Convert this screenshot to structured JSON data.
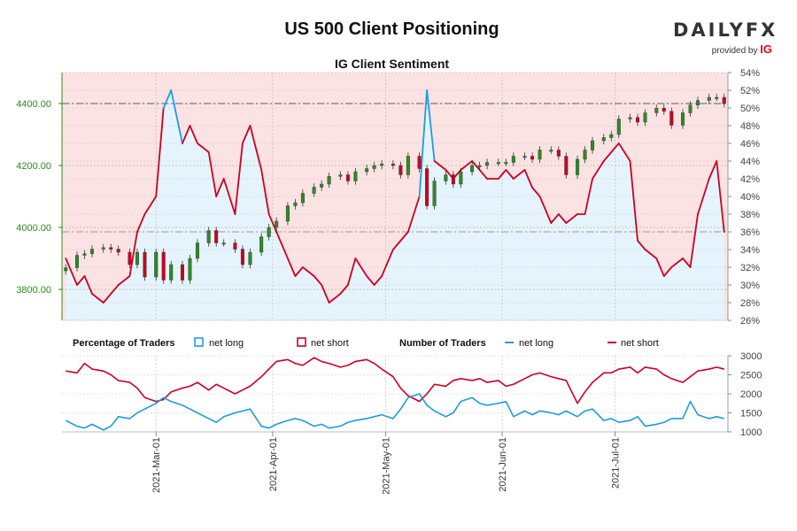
{
  "header": {
    "title": "US 500 Client Positioning",
    "subtitle": "IG Client Sentiment",
    "logo_text": "DAILYFX",
    "logo_sub": "provided by",
    "logo_ig": "IG"
  },
  "legend": {
    "pct_title": "Percentage of Traders",
    "pct_long": "net long",
    "pct_short": "net short",
    "num_title": "Number of Traders",
    "num_long": "net long",
    "num_short": "net short"
  },
  "colors": {
    "long": "#1e9be0",
    "short": "#cc0022",
    "long_fill": "#e5f4fc",
    "short_fill": "#fbe2e3",
    "price_axis": "#2f8a1a",
    "candle_up": "#2e8b22",
    "candle_down": "#cc0022",
    "grid": "#a8c48a"
  },
  "chart_data": [
    {
      "type": "line",
      "name": "price-sentiment",
      "dates": [
        "2021-02-05",
        "2021-02-08",
        "2021-02-10",
        "2021-02-12",
        "2021-02-15",
        "2021-02-17",
        "2021-02-19",
        "2021-02-22",
        "2021-02-24",
        "2021-02-26",
        "2021-03-01",
        "2021-03-03",
        "2021-03-05",
        "2021-03-08",
        "2021-03-10",
        "2021-03-12",
        "2021-03-15",
        "2021-03-17",
        "2021-03-19",
        "2021-03-22",
        "2021-03-24",
        "2021-03-26",
        "2021-03-29",
        "2021-03-31",
        "2021-04-02",
        "2021-04-05",
        "2021-04-07",
        "2021-04-09",
        "2021-04-12",
        "2021-04-14",
        "2021-04-16",
        "2021-04-19",
        "2021-04-21",
        "2021-04-23",
        "2021-04-26",
        "2021-04-28",
        "2021-04-30",
        "2021-05-03",
        "2021-05-05",
        "2021-05-07",
        "2021-05-10",
        "2021-05-12",
        "2021-05-14",
        "2021-05-17",
        "2021-05-19",
        "2021-05-21",
        "2021-05-24",
        "2021-05-26",
        "2021-05-28",
        "2021-05-31",
        "2021-06-02",
        "2021-06-04",
        "2021-06-07",
        "2021-06-09",
        "2021-06-11",
        "2021-06-14",
        "2021-06-16",
        "2021-06-18",
        "2021-06-21",
        "2021-06-23",
        "2021-06-25",
        "2021-06-28",
        "2021-06-30",
        "2021-07-02",
        "2021-07-05",
        "2021-07-07",
        "2021-07-09",
        "2021-07-12",
        "2021-07-14",
        "2021-07-16",
        "2021-07-19",
        "2021-07-21",
        "2021-07-23",
        "2021-07-26",
        "2021-07-28",
        "2021-07-30"
      ],
      "price_close": [
        3870,
        3910,
        3915,
        3930,
        3935,
        3930,
        3920,
        3880,
        3920,
        3840,
        3920,
        3830,
        3880,
        3830,
        3900,
        3950,
        3990,
        3950,
        3950,
        3930,
        3880,
        3920,
        3970,
        4000,
        4020,
        4070,
        4080,
        4110,
        4130,
        4140,
        4165,
        4170,
        4150,
        4180,
        4190,
        4200,
        4205,
        4200,
        4170,
        4230,
        4190,
        4070,
        4150,
        4170,
        4140,
        4180,
        4200,
        4200,
        4210,
        4210,
        4210,
        4230,
        4230,
        4220,
        4250,
        4250,
        4230,
        4170,
        4220,
        4250,
        4280,
        4290,
        4300,
        4350,
        4355,
        4340,
        4370,
        4385,
        4375,
        4330,
        4370,
        4395,
        4410,
        4420,
        4420,
        4400
      ],
      "net_long_pct": [
        33,
        30,
        31,
        29,
        28,
        29,
        30,
        31,
        36,
        38,
        40,
        50,
        52,
        46,
        48,
        46,
        45,
        40,
        42,
        38,
        46,
        48,
        43,
        38,
        36,
        33,
        31,
        32,
        31,
        30,
        28,
        29,
        30,
        33,
        31,
        30,
        31,
        34,
        35,
        36,
        40,
        52,
        44,
        43,
        42,
        43,
        44,
        43,
        42,
        42,
        43,
        42,
        43,
        41,
        40,
        37,
        38,
        37,
        38,
        38,
        42,
        44,
        45,
        46,
        44,
        35,
        34,
        33,
        31,
        32,
        33,
        32,
        38,
        42,
        44,
        36
      ],
      "net_short_pct": [
        67,
        70,
        69,
        71,
        72,
        71,
        70,
        69,
        64,
        62,
        60,
        50,
        48,
        54,
        52,
        54,
        55,
        60,
        58,
        62,
        54,
        52,
        57,
        62,
        64,
        67,
        69,
        68,
        69,
        70,
        72,
        71,
        70,
        67,
        69,
        70,
        69,
        66,
        65,
        64,
        60,
        48,
        56,
        57,
        58,
        57,
        56,
        57,
        58,
        58,
        57,
        58,
        57,
        59,
        60,
        63,
        62,
        63,
        62,
        62,
        58,
        56,
        55,
        54,
        56,
        65,
        66,
        67,
        69,
        68,
        67,
        68,
        62,
        58,
        56,
        64
      ],
      "left_axis": {
        "min": 3700,
        "max": 4500,
        "ticks": [
          "3800.00",
          "4000.00",
          "4200.00",
          "4400.00"
        ]
      },
      "right_axis": {
        "min": 26,
        "max": 54,
        "ticks": [
          "26%",
          "28%",
          "30%",
          "32%",
          "34%",
          "36%",
          "38%",
          "40%",
          "42%",
          "44%",
          "46%",
          "48%",
          "50%",
          "52%",
          "54%"
        ]
      }
    },
    {
      "type": "line",
      "name": "number-of-traders",
      "dates": [
        "2021-02-05",
        "2021-02-08",
        "2021-02-10",
        "2021-02-12",
        "2021-02-15",
        "2021-02-17",
        "2021-02-19",
        "2021-02-22",
        "2021-02-24",
        "2021-02-26",
        "2021-03-01",
        "2021-03-03",
        "2021-03-05",
        "2021-03-08",
        "2021-03-10",
        "2021-03-12",
        "2021-03-15",
        "2021-03-17",
        "2021-03-19",
        "2021-03-22",
        "2021-03-24",
        "2021-03-26",
        "2021-03-29",
        "2021-03-31",
        "2021-04-02",
        "2021-04-05",
        "2021-04-07",
        "2021-04-09",
        "2021-04-12",
        "2021-04-14",
        "2021-04-16",
        "2021-04-19",
        "2021-04-21",
        "2021-04-23",
        "2021-04-26",
        "2021-04-28",
        "2021-04-30",
        "2021-05-03",
        "2021-05-05",
        "2021-05-07",
        "2021-05-10",
        "2021-05-12",
        "2021-05-14",
        "2021-05-17",
        "2021-05-19",
        "2021-05-21",
        "2021-05-24",
        "2021-05-26",
        "2021-05-28",
        "2021-05-31",
        "2021-06-02",
        "2021-06-04",
        "2021-06-07",
        "2021-06-09",
        "2021-06-11",
        "2021-06-14",
        "2021-06-16",
        "2021-06-18",
        "2021-06-21",
        "2021-06-23",
        "2021-06-25",
        "2021-06-28",
        "2021-06-30",
        "2021-07-02",
        "2021-07-05",
        "2021-07-07",
        "2021-07-09",
        "2021-07-12",
        "2021-07-14",
        "2021-07-16",
        "2021-07-19",
        "2021-07-21",
        "2021-07-23",
        "2021-07-26",
        "2021-07-28",
        "2021-07-30"
      ],
      "net_long": [
        1300,
        1150,
        1100,
        1200,
        1050,
        1150,
        1400,
        1350,
        1500,
        1600,
        1750,
        1900,
        1800,
        1700,
        1600,
        1500,
        1350,
        1250,
        1400,
        1500,
        1550,
        1600,
        1150,
        1100,
        1200,
        1300,
        1350,
        1300,
        1150,
        1200,
        1100,
        1150,
        1250,
        1300,
        1350,
        1400,
        1450,
        1350,
        1600,
        1900,
        2000,
        1700,
        1550,
        1400,
        1500,
        1800,
        1900,
        1750,
        1700,
        1750,
        1800,
        1400,
        1550,
        1450,
        1550,
        1500,
        1450,
        1550,
        1400,
        1550,
        1600,
        1300,
        1350,
        1250,
        1300,
        1400,
        1150,
        1200,
        1250,
        1350,
        1350,
        1800,
        1450,
        1350,
        1400,
        1350
      ],
      "net_short": [
        2600,
        2550,
        2800,
        2650,
        2600,
        2500,
        2350,
        2300,
        2150,
        1900,
        1800,
        1850,
        2050,
        2150,
        2200,
        2300,
        2100,
        2250,
        2150,
        2000,
        2100,
        2200,
        2450,
        2650,
        2850,
        2900,
        2800,
        2750,
        2950,
        2850,
        2800,
        2700,
        2750,
        2850,
        2900,
        2800,
        2650,
        2450,
        2150,
        1950,
        1800,
        2000,
        2250,
        2200,
        2350,
        2400,
        2350,
        2400,
        2300,
        2350,
        2200,
        2250,
        2400,
        2500,
        2550,
        2450,
        2400,
        2350,
        1750,
        2050,
        2300,
        2550,
        2550,
        2650,
        2700,
        2550,
        2700,
        2650,
        2500,
        2400,
        2300,
        2450,
        2600,
        2650,
        2700,
        2650
      ],
      "y_axis": {
        "min": 1000,
        "max": 3000,
        "ticks": [
          "1000",
          "1500",
          "2000",
          "2500",
          "3000"
        ]
      }
    }
  ],
  "x_axis": {
    "tick_labels": [
      "2021-Mar-01",
      "2021-Apr-01",
      "2021-May-01",
      "2021-Jun-01",
      "2021-Jul-01"
    ],
    "tick_dates": [
      "2021-03-01",
      "2021-04-01",
      "2021-05-01",
      "2021-06-01",
      "2021-07-01"
    ]
  }
}
